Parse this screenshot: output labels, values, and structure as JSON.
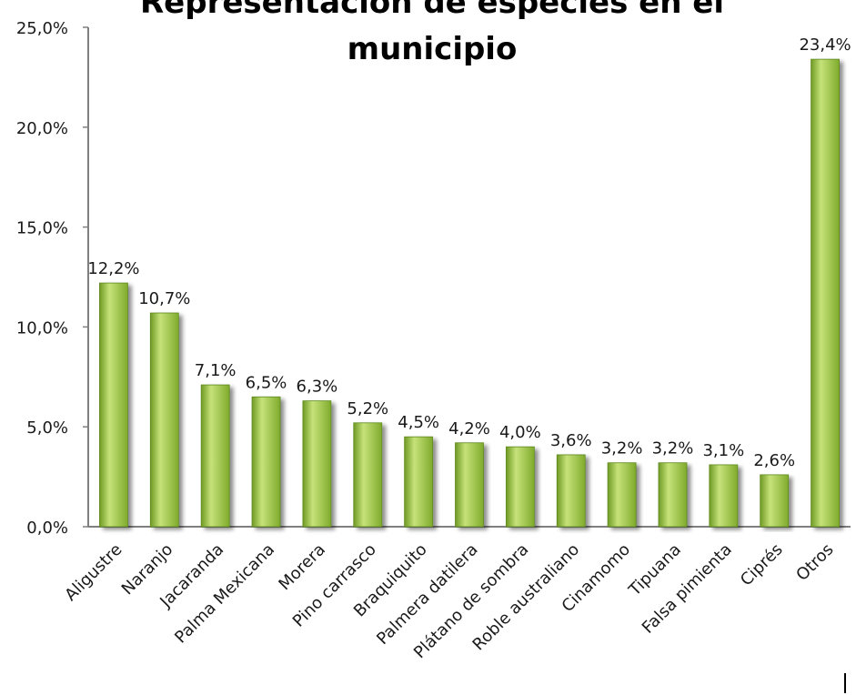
{
  "chart_data": {
    "type": "bar",
    "title_lines": [
      "Representación de especies en el",
      "municipio"
    ],
    "categories": [
      "Aligustre",
      "Naranjo",
      "Jacaranda",
      "Palma Mexicana",
      "Morera",
      "Pino carrasco",
      "Braquiquito",
      "Palmera datilera",
      "Plátano de sombra",
      "Roble australiano",
      "Cinamomo",
      "Tipuana",
      "Falsa pimienta",
      "Ciprés",
      "Otros"
    ],
    "values": [
      12.2,
      10.7,
      7.1,
      6.5,
      6.3,
      5.2,
      4.5,
      4.2,
      4.0,
      3.6,
      3.2,
      3.2,
      3.1,
      2.6,
      23.4
    ],
    "data_labels": [
      "12,2%",
      "10,7%",
      "7,1%",
      "6,5%",
      "6,3%",
      "5,2%",
      "4,5%",
      "4,2%",
      "4,0%",
      "3,6%",
      "3,2%",
      "3,2%",
      "3,1%",
      "2,6%",
      "23,4%"
    ],
    "y_ticks": [
      0,
      5,
      10,
      15,
      20,
      25
    ],
    "y_tick_labels": [
      "0,0%",
      "5,0%",
      "10,0%",
      "15,0%",
      "20,0%",
      "25,0%"
    ],
    "ylim": [
      0,
      25
    ],
    "xlabel": "",
    "ylabel": "",
    "grid": false,
    "legend": "none",
    "colors": {
      "bar_light": "#c6e27a",
      "bar_mid": "#8fbb38",
      "bar_dark": "#5e8a1e",
      "axis": "#7f7f7f"
    }
  }
}
